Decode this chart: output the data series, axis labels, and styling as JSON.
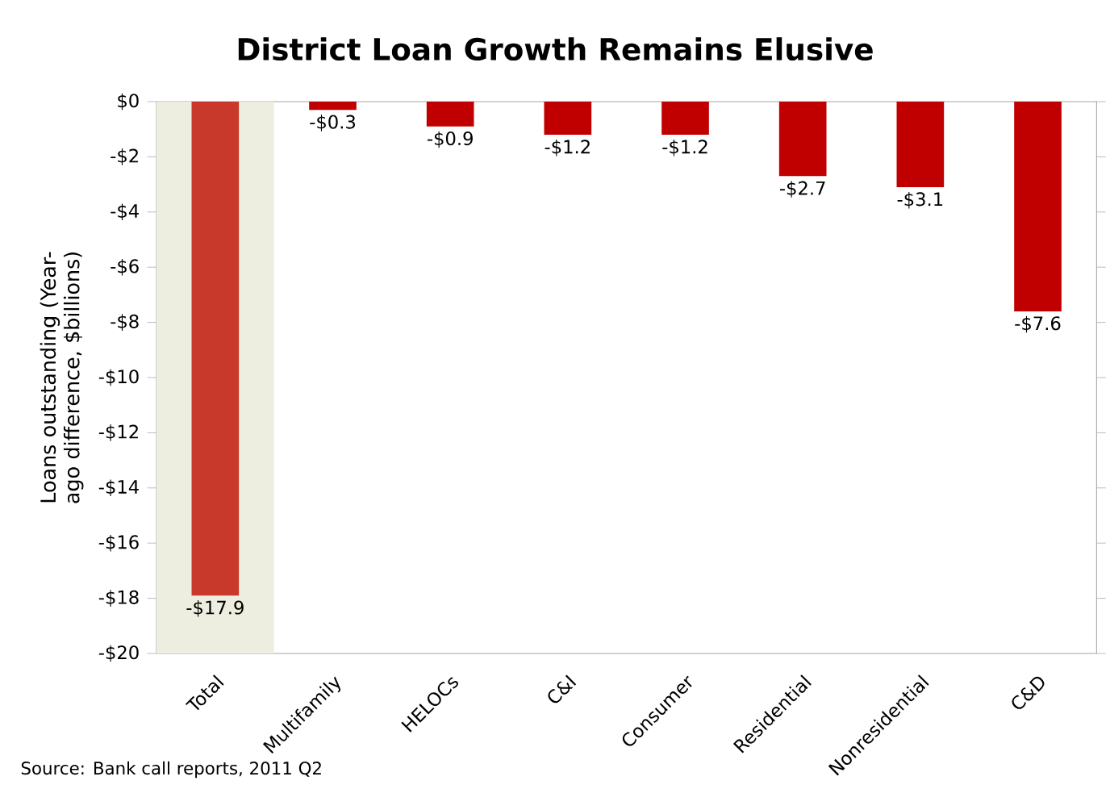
{
  "chart_data": {
    "type": "bar",
    "title": "District Loan Growth Remains Elusive",
    "ylabel": "Loans outstanding (Year-ago difference, $billions)",
    "categories": [
      "Total",
      "Multifamily",
      "HELOCs",
      "C&I",
      "Consumer",
      "Residential",
      "Nonresidential",
      "C&D"
    ],
    "values": [
      -17.9,
      -0.3,
      -0.9,
      -1.2,
      -1.2,
      -2.7,
      -3.1,
      -7.6
    ],
    "colors": [
      "#c8392b",
      "#c00000",
      "#c00000",
      "#c00000",
      "#c00000",
      "#c00000",
      "#c00000",
      "#c00000"
    ],
    "value_labels": [
      "-$17.9",
      "-$0.3",
      "-$0.9",
      "-$1.2",
      "-$1.2",
      "-$2.7",
      "-$3.1",
      "-$7.6"
    ],
    "ylim": [
      -20,
      0
    ],
    "yticks": [
      {
        "value": 0,
        "label": "$0"
      },
      {
        "value": -2,
        "label": "-$2"
      },
      {
        "value": -4,
        "label": "-$4"
      },
      {
        "value": -6,
        "label": "-$6"
      },
      {
        "value": -8,
        "label": "-$8"
      },
      {
        "value": -10,
        "label": "-$10"
      },
      {
        "value": -12,
        "label": "-$12"
      },
      {
        "value": -14,
        "label": "-$14"
      },
      {
        "value": -16,
        "label": "-$16"
      },
      {
        "value": -18,
        "label": "-$18"
      },
      {
        "value": -20,
        "label": "-$20"
      }
    ],
    "bands": [
      {
        "axis": "x",
        "from": "Total",
        "to": "Total",
        "color": "#eeeee0"
      }
    ],
    "annotations": [
      "Source:  Bank call reports, 2011 Q2"
    ]
  }
}
